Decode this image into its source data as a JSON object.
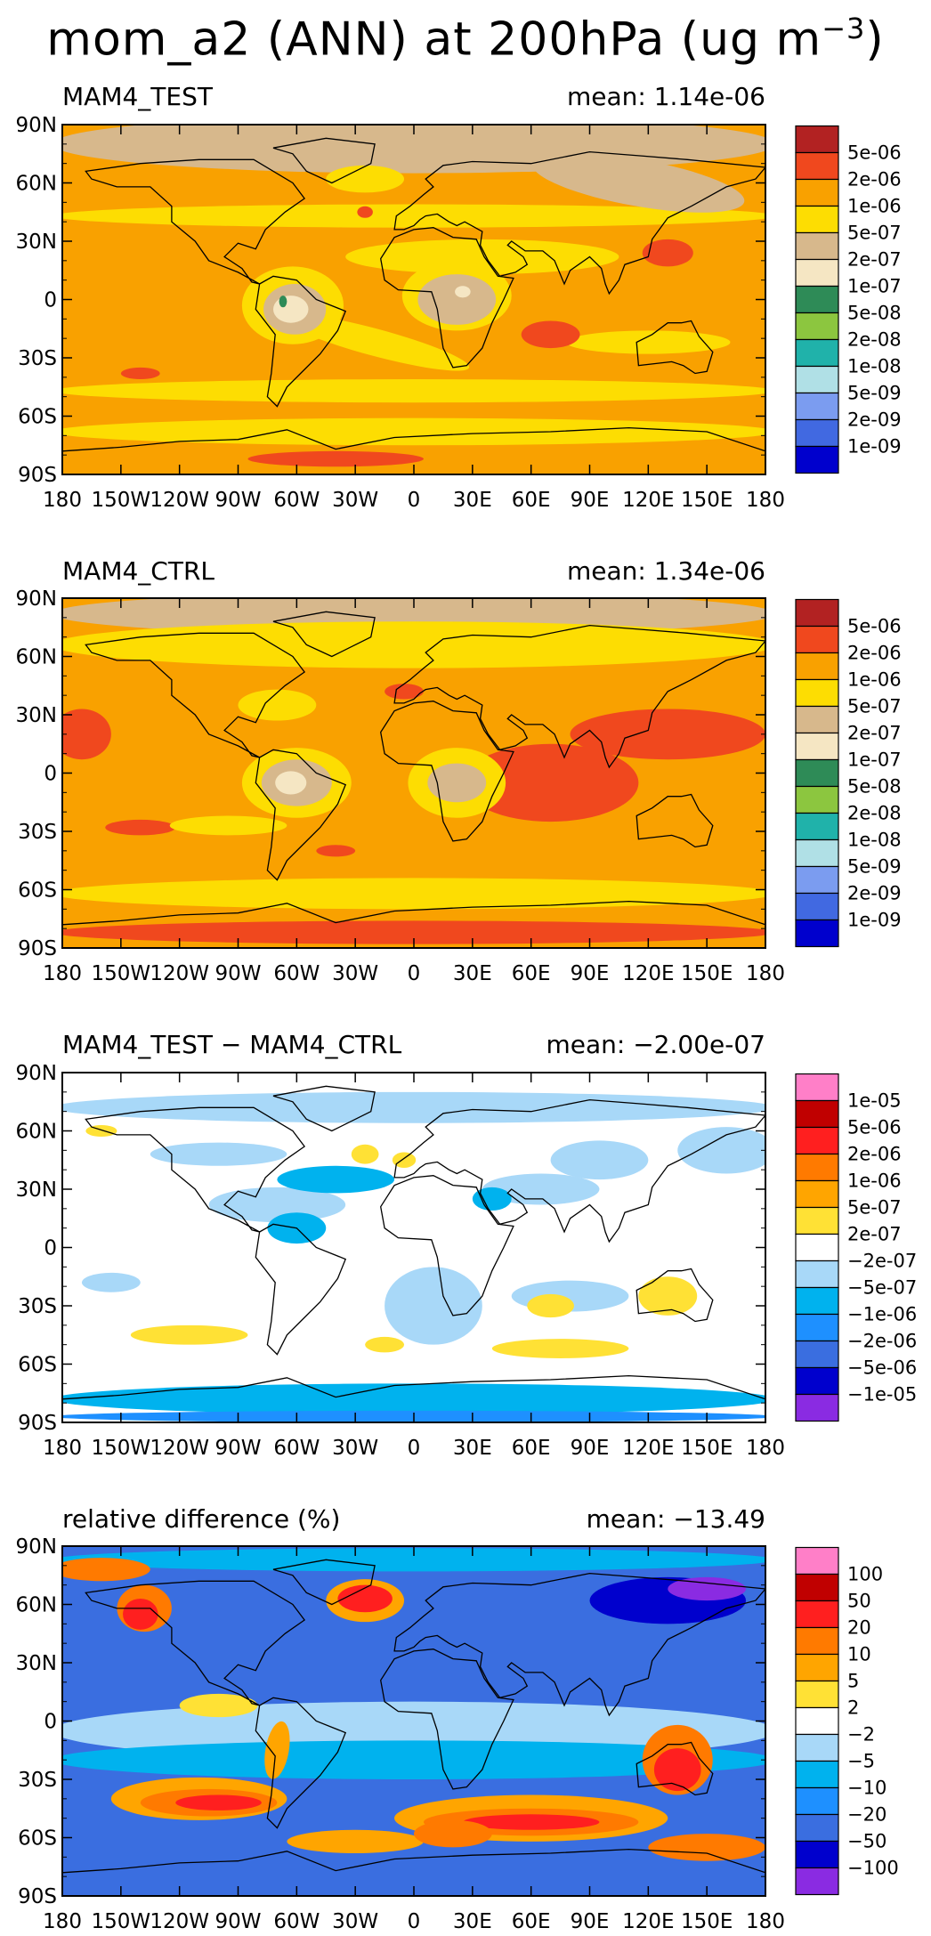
{
  "figure": {
    "title_main": "mom_a2 (ANN) at 200hPa (ug m",
    "title_exp": "−3",
    "title_close": ")"
  },
  "chart_data": [
    {
      "type": "heatmap",
      "title": "MAM4_TEST",
      "mean_label": "mean:  1.14e-06",
      "colorbar_labels": [
        "5e-06",
        "2e-06",
        "1e-06",
        "5e-07",
        "2e-07",
        "1e-07",
        "5e-08",
        "2e-08",
        "1e-08",
        "5e-09",
        "2e-09",
        "1e-09"
      ],
      "colors": [
        "#b22222",
        "#f0481e",
        "#f9a100",
        "#fddd02",
        "#d7b88c",
        "#f5e6c3",
        "#2e8b57",
        "#8cc63f",
        "#20b2aa",
        "#b0e0e6",
        "#7b9cf0",
        "#4169e1",
        "#0000cd"
      ],
      "base": "#f9a100",
      "lat_labels": [
        "90N",
        "60N",
        "30N",
        "0",
        "30S",
        "60S",
        "90S"
      ],
      "lon_labels": [
        "180",
        "150W",
        "120W",
        "90W",
        "60W",
        "30W",
        "0",
        "30E",
        "60E",
        "90E",
        "120E",
        "150E",
        "180"
      ]
    },
    {
      "type": "heatmap",
      "title": "MAM4_CTRL",
      "mean_label": "mean:  1.34e-06",
      "colorbar_labels": [
        "5e-06",
        "2e-06",
        "1e-06",
        "5e-07",
        "2e-07",
        "1e-07",
        "5e-08",
        "2e-08",
        "1e-08",
        "5e-09",
        "2e-09",
        "1e-09"
      ],
      "colors": [
        "#b22222",
        "#f0481e",
        "#f9a100",
        "#fddd02",
        "#d7b88c",
        "#f5e6c3",
        "#2e8b57",
        "#8cc63f",
        "#20b2aa",
        "#b0e0e6",
        "#7b9cf0",
        "#4169e1",
        "#0000cd"
      ],
      "base": "#f9a100",
      "lat_labels": [
        "90N",
        "60N",
        "30N",
        "0",
        "30S",
        "60S",
        "90S"
      ],
      "lon_labels": [
        "180",
        "150W",
        "120W",
        "90W",
        "60W",
        "30W",
        "0",
        "30E",
        "60E",
        "90E",
        "120E",
        "150E",
        "180"
      ]
    },
    {
      "type": "heatmap",
      "title": "MAM4_TEST − MAM4_CTRL",
      "mean_label": "mean:  −2.00e-07",
      "colorbar_labels": [
        "1e-05",
        "5e-06",
        "2e-06",
        "1e-06",
        "5e-07",
        "2e-07",
        "−2e-07",
        "−5e-07",
        "−1e-06",
        "−2e-06",
        "−5e-06",
        "−1e-05"
      ],
      "colors": [
        "#ff7fc8",
        "#c00000",
        "#ff1f1f",
        "#ff7a00",
        "#ffa500",
        "#ffe135",
        "#ffffff",
        "#a8d8f8",
        "#00b2ee",
        "#1e90ff",
        "#3a6ee0",
        "#0000cd",
        "#8a2be2"
      ],
      "base": "#ffffff",
      "lat_labels": [
        "90N",
        "60N",
        "30N",
        "0",
        "30S",
        "60S",
        "90S"
      ],
      "lon_labels": [
        "180",
        "150W",
        "120W",
        "90W",
        "60W",
        "30W",
        "0",
        "30E",
        "60E",
        "90E",
        "120E",
        "150E",
        "180"
      ]
    },
    {
      "type": "heatmap",
      "title": "relative difference (%)",
      "mean_label": "mean:  −13.49",
      "colorbar_labels": [
        "100",
        "50",
        "20",
        "10",
        "5",
        "2",
        "−2",
        "−5",
        "−10",
        "−20",
        "−50",
        "−100"
      ],
      "colors": [
        "#ff7fc8",
        "#c00000",
        "#ff1f1f",
        "#ff7a00",
        "#ffa500",
        "#ffe135",
        "#ffffff",
        "#a8d8f8",
        "#00b2ee",
        "#1e90ff",
        "#3a6ee0",
        "#0000cd",
        "#8a2be2"
      ],
      "base": "#3a6ee0",
      "lat_labels": [
        "90N",
        "60N",
        "30N",
        "0",
        "30S",
        "60S",
        "90S"
      ],
      "lon_labels": [
        "180",
        "150W",
        "120W",
        "90W",
        "60W",
        "30W",
        "0",
        "30E",
        "60E",
        "90E",
        "120E",
        "150E",
        "180"
      ]
    }
  ]
}
